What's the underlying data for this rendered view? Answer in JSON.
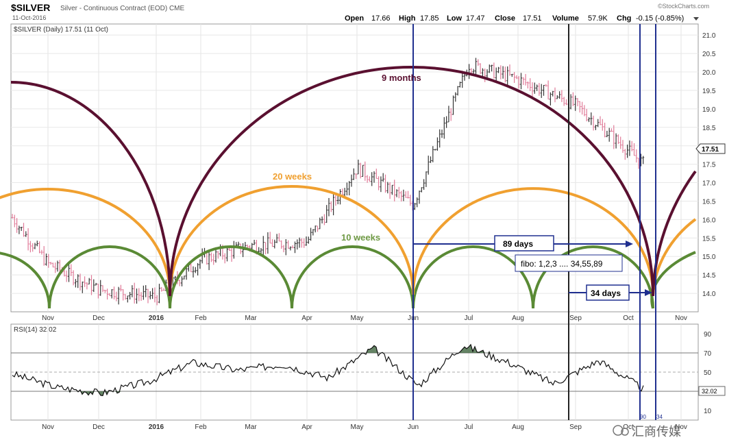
{
  "header": {
    "symbol": "$SILVER",
    "description": "Silver - Continuous Contract (EOD) CME",
    "date": "11-Oct-2016",
    "watermark": "©StockCharts.com",
    "legend_line": "$SILVER (Daily) 17.51 (11 Oct)",
    "ohlc": {
      "open_label": "Open",
      "open": "17.66",
      "high_label": "High",
      "high": "17.85",
      "low_label": "Low",
      "low": "17.47",
      "close_label": "Close",
      "close": "17.51",
      "volume_label": "Volume",
      "volume": "57.9K",
      "chg_label": "Chg",
      "chg": "-0.15 (-0.85%)"
    },
    "last_price_tag": "17.51"
  },
  "annotations": {
    "nine_months": "9 months",
    "twenty_weeks": "20 weeks",
    "ten_weeks": "10 weeks",
    "days_89": "89 days",
    "fibo": "fibo: 1,2,3 .... 34,55,89",
    "days_34": "34 days"
  },
  "rsi": {
    "label": "RSI(14) 32.02",
    "value_tag": "32.02",
    "bottom_tags": [
      "90",
      "34"
    ]
  },
  "footer_watermark": "汇商传媒",
  "colors": {
    "nine_month_arc": "#5a1030",
    "twenty_week_arc": "#f0a030",
    "ten_week_arc": "#5a8a35",
    "cycle_lines": "#1f2f8f",
    "up_bar": "#333333",
    "down_bar": "#e07a98",
    "rsi_fill": "#4a6e4a"
  },
  "chart_data": [
    {
      "type": "ohlc",
      "title": "$SILVER (Daily)",
      "x_tick_labels": [
        "Nov",
        "Dec",
        "2016",
        "Feb",
        "Mar",
        "Apr",
        "May",
        "Jun",
        "Jul",
        "Aug",
        "Sep",
        "Oct",
        "Nov"
      ],
      "y_tick_labels": [
        "14.0",
        "14.5",
        "15.0",
        "15.5",
        "16.0",
        "16.5",
        "17.0",
        "17.5",
        "18.0",
        "18.5",
        "19.0",
        "19.5",
        "20.0",
        "20.5",
        "21.0"
      ],
      "ylim": [
        13.5,
        21.3
      ],
      "approx_close_path": {
        "months": [
          "Oct-15",
          "Nov",
          "Dec",
          "Jan",
          "Feb",
          "Mar",
          "Apr",
          "May",
          "Jun",
          "Jul",
          "Aug",
          "Sep",
          "Oct"
        ],
        "values": [
          16.1,
          14.8,
          14.1,
          13.9,
          14.9,
          15.3,
          15.4,
          17.4,
          16.4,
          20.2,
          19.8,
          19.1,
          17.5
        ]
      },
      "cycles": [
        {
          "name": "9 months",
          "lows": [
            "2016-01-14",
            "2016-10-11"
          ]
        },
        {
          "name": "20 weeks",
          "lows": [
            "2016-01-14",
            "2016-06-01",
            "2016-10-11"
          ]
        },
        {
          "name": "10 weeks",
          "lows": [
            "2015-11-17",
            "2016-01-14",
            "2016-03-29",
            "2016-06-01",
            "2016-08-18",
            "2016-10-11"
          ]
        }
      ],
      "vertical_markers": [
        "Jun",
        "late Aug",
        "early Oct",
        "mid Oct"
      ]
    },
    {
      "type": "line",
      "title": "RSI(14) 32.02",
      "x_tick_labels": [
        "Nov",
        "Dec",
        "2016",
        "Feb",
        "Mar",
        "Apr",
        "May",
        "Jun",
        "Jul",
        "Aug",
        "Sep",
        "Oct",
        "Nov"
      ],
      "y_tick_labels": [
        "10",
        "30",
        "50",
        "70",
        "90"
      ],
      "ylim": [
        0,
        100
      ],
      "reference_lines": [
        30,
        50,
        70
      ],
      "approx_values": [
        48,
        34,
        28,
        40,
        60,
        52,
        58,
        44,
        75,
        36,
        78,
        60,
        38,
        62,
        32
      ]
    }
  ]
}
